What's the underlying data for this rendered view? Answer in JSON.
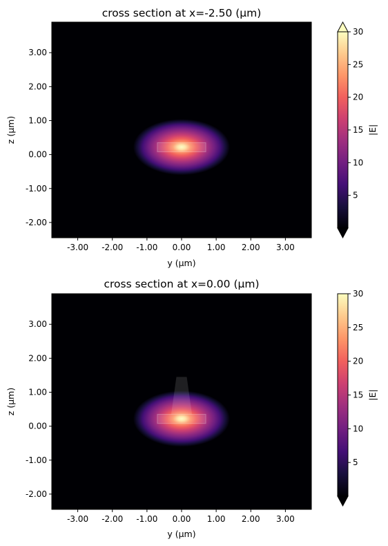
{
  "chart_data": [
    {
      "type": "heatmap",
      "title": "cross section at x=-2.50 (μm)",
      "xlabel": "y (μm)",
      "ylabel": "z (μm)",
      "xlim": [
        -3.75,
        3.75
      ],
      "ylim": [
        -2.45,
        3.9
      ],
      "xticks": [
        -3,
        -2,
        -1,
        0,
        1,
        2,
        3
      ],
      "xtick_labels": [
        "-3.00",
        "-2.00",
        "-1.00",
        "0.00",
        "1.00",
        "2.00",
        "3.00"
      ],
      "yticks": [
        -2,
        -1,
        0,
        1,
        2,
        3
      ],
      "ytick_labels": [
        "-2.00",
        "-1.00",
        "0.00",
        "1.00",
        "2.00",
        "3.00"
      ],
      "colormap": "magma",
      "colorbar": {
        "label": "|E|",
        "min": 0,
        "max": 30,
        "ticks": [
          5,
          10,
          15,
          20,
          25,
          30
        ],
        "tick_labels": [
          "5",
          "10",
          "15",
          "20",
          "25",
          "30"
        ],
        "extend": "both"
      },
      "field": {
        "center_y": 0.0,
        "center_z": 0.22,
        "peak": 30
      },
      "structures": [
        {
          "kind": "slab",
          "y_min": -0.7,
          "y_max": 0.7,
          "z_min": 0.08,
          "z_max": 0.35
        }
      ]
    },
    {
      "type": "heatmap",
      "title": "cross section at x=0.00 (μm)",
      "xlabel": "y (μm)",
      "ylabel": "z (μm)",
      "xlim": [
        -3.75,
        3.75
      ],
      "ylim": [
        -2.45,
        3.9
      ],
      "xticks": [
        -3,
        -2,
        -1,
        0,
        1,
        2,
        3
      ],
      "xtick_labels": [
        "-3.00",
        "-2.00",
        "-1.00",
        "0.00",
        "1.00",
        "2.00",
        "3.00"
      ],
      "yticks": [
        -2,
        -1,
        0,
        1,
        2,
        3
      ],
      "ytick_labels": [
        "-2.00",
        "-1.00",
        "0.00",
        "1.00",
        "2.00",
        "3.00"
      ],
      "colormap": "magma",
      "colorbar": {
        "label": "|E|",
        "min": 0,
        "max": 30,
        "ticks": [
          5,
          10,
          15,
          20,
          25,
          30
        ],
        "tick_labels": [
          "5",
          "10",
          "15",
          "20",
          "25",
          "30"
        ],
        "extend": "min"
      },
      "field": {
        "center_y": 0.0,
        "center_z": 0.22,
        "peak": 30
      },
      "structures": [
        {
          "kind": "slab",
          "y_min": -0.7,
          "y_max": 0.7,
          "z_min": 0.08,
          "z_max": 0.35
        },
        {
          "kind": "ridge",
          "y_bottom_min": -0.3,
          "y_bottom_max": 0.3,
          "y_top_min": -0.15,
          "y_top_max": 0.15,
          "z_min": 0.35,
          "z_max": 1.45
        }
      ]
    }
  ]
}
